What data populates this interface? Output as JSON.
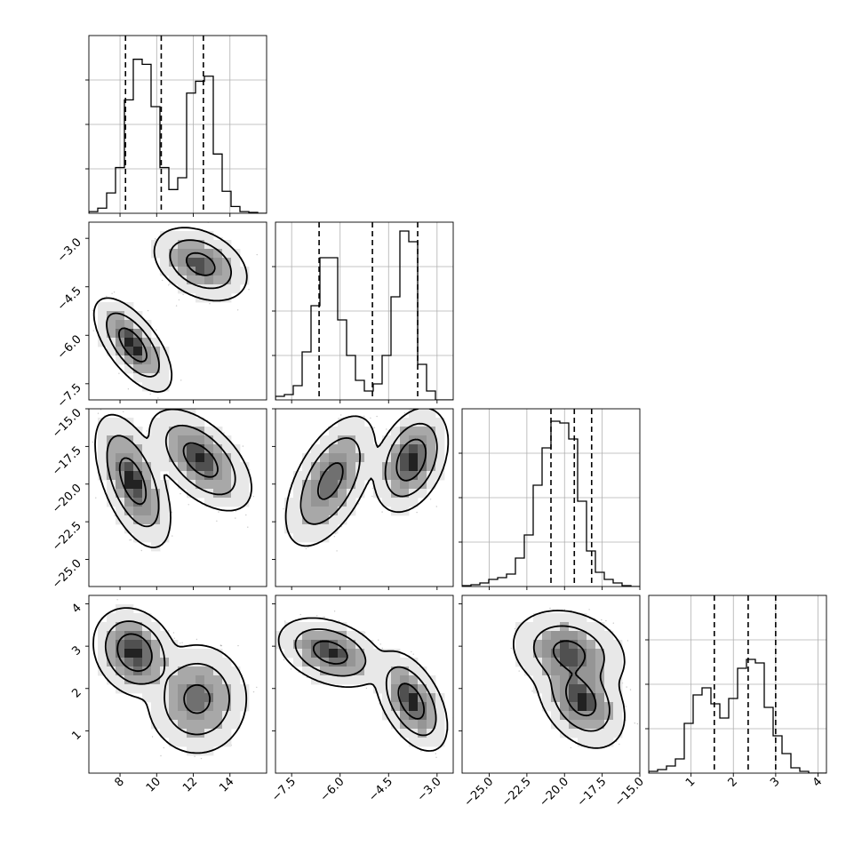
{
  "chart_data": {
    "type": "corner",
    "parameters": [
      {
        "id": "p0",
        "ticks": [
          8,
          10,
          12,
          14
        ],
        "tick_labels": [
          "8",
          "10",
          "12",
          "14"
        ],
        "range": [
          6.3,
          16.0
        ]
      },
      {
        "id": "p1",
        "ticks": [
          -7.5,
          -6.0,
          -4.5,
          -3.0
        ],
        "tick_labels": [
          "−7.5",
          "−6.0",
          "−4.5",
          "−3.0"
        ],
        "range": [
          -8.0,
          -2.5
        ]
      },
      {
        "id": "p2",
        "ticks": [
          -25.0,
          -22.5,
          -20.0,
          -17.5,
          -15.0
        ],
        "tick_labels": [
          "−25.0",
          "−22.5",
          "−20.0",
          "−17.5",
          "−15.0"
        ],
        "range": [
          -26.8,
          -15.0
        ]
      },
      {
        "id": "p3",
        "ticks": [
          1,
          2,
          3,
          4
        ],
        "tick_labels": [
          "1",
          "2",
          "3",
          "4"
        ],
        "range": [
          0.0,
          4.2
        ]
      }
    ],
    "histograms": [
      {
        "param": 0,
        "ymax": 1.05,
        "quantiles": [
          8.3,
          10.25,
          12.55
        ],
        "bins": {
          "start": 6.3,
          "width": 0.485,
          "counts": [
            0.01,
            0.03,
            0.12,
            0.27,
            0.67,
            0.91,
            0.88,
            0.63,
            0.27,
            0.14,
            0.21,
            0.71,
            0.78,
            0.81,
            0.35,
            0.13,
            0.04,
            0.01,
            0.005,
            0.0
          ]
        }
      },
      {
        "param": 1,
        "ymax": 1.0,
        "quantiles": [
          -6.65,
          -5.0,
          -3.6
        ],
        "bins": {
          "start": -8.0,
          "width": 0.275,
          "counts": [
            0.02,
            0.03,
            0.08,
            0.27,
            0.53,
            0.8,
            0.8,
            0.45,
            0.25,
            0.11,
            0.05,
            0.09,
            0.25,
            0.58,
            0.95,
            0.89,
            0.2,
            0.05,
            0.0,
            0.0
          ]
        }
      },
      {
        "param": 2,
        "ymax": 1.0,
        "quantiles": [
          -20.9,
          -19.35,
          -18.2
        ],
        "bins": {
          "start": -26.8,
          "width": 0.59,
          "counts": [
            0.005,
            0.01,
            0.02,
            0.04,
            0.05,
            0.07,
            0.16,
            0.29,
            0.57,
            0.78,
            0.93,
            0.92,
            0.83,
            0.48,
            0.2,
            0.08,
            0.04,
            0.02,
            0.005,
            0.0
          ]
        }
      },
      {
        "param": 3,
        "ymax": 1.0,
        "quantiles": [
          1.55,
          2.35,
          3.0
        ],
        "bins": {
          "start": 0.0,
          "width": 0.21,
          "counts": [
            0.01,
            0.02,
            0.04,
            0.08,
            0.28,
            0.44,
            0.48,
            0.39,
            0.31,
            0.42,
            0.59,
            0.64,
            0.62,
            0.37,
            0.21,
            0.11,
            0.03,
            0.01,
            0.0,
            0.0
          ]
        }
      }
    ],
    "pairs": [
      {
        "x": 0,
        "y": 1,
        "modes": [
          {
            "mean": [
              8.7,
              -6.3
            ],
            "sd": [
              0.7,
              0.48
            ],
            "rho": -0.65,
            "weight": 0.5
          },
          {
            "mean": [
              12.4,
              -3.8
            ],
            "sd": [
              0.85,
              0.38
            ],
            "rho": -0.35,
            "weight": 0.5
          }
        ]
      },
      {
        "x": 0,
        "y": 2,
        "modes": [
          {
            "mean": [
              8.7,
              -19.8
            ],
            "sd": [
              0.7,
              1.5
            ],
            "rho": -0.55,
            "weight": 0.5
          },
          {
            "mean": [
              12.4,
              -18.4
            ],
            "sd": [
              0.95,
              1.15
            ],
            "rho": -0.55,
            "weight": 0.5
          }
        ]
      },
      {
        "x": 0,
        "y": 3,
        "modes": [
          {
            "mean": [
              8.8,
              2.85
            ],
            "sd": [
              0.75,
              0.35
            ],
            "rho": -0.2,
            "weight": 0.5
          },
          {
            "mean": [
              12.2,
              1.75
            ],
            "sd": [
              0.95,
              0.45
            ],
            "rho": 0.0,
            "weight": 0.5
          }
        ]
      },
      {
        "x": 1,
        "y": 2,
        "modes": [
          {
            "mean": [
              -6.3,
              -19.8
            ],
            "sd": [
              0.48,
              1.5
            ],
            "rho": 0.55,
            "weight": 0.5
          },
          {
            "mean": [
              -3.8,
              -18.4
            ],
            "sd": [
              0.38,
              1.15
            ],
            "rho": 0.35,
            "weight": 0.5
          }
        ]
      },
      {
        "x": 1,
        "y": 3,
        "modes": [
          {
            "mean": [
              -6.3,
              2.85
            ],
            "sd": [
              0.55,
              0.28
            ],
            "rho": -0.35,
            "weight": 0.5
          },
          {
            "mean": [
              -3.8,
              1.7
            ],
            "sd": [
              0.38,
              0.4
            ],
            "rho": -0.5,
            "weight": 0.5
          }
        ]
      },
      {
        "x": 2,
        "y": 3,
        "modes": [
          {
            "mean": [
              -19.7,
              2.85
            ],
            "sd": [
              1.3,
              0.35
            ],
            "rho": -0.2,
            "weight": 0.5
          },
          {
            "mean": [
              -18.9,
              1.75
            ],
            "sd": [
              1.0,
              0.4
            ],
            "rho": -0.35,
            "weight": 0.5
          }
        ]
      }
    ],
    "grid": true,
    "contour_levels": [
      0.393,
      0.865,
      0.989
    ],
    "colors": {
      "line": "#000000",
      "fill_light": "#e8e8e8",
      "fill_mid": "#a8a8a8",
      "fill_dark": "#707070",
      "peak": "#222222",
      "scatter": "#9a9a9a",
      "grid": "#b0b0b0"
    }
  }
}
